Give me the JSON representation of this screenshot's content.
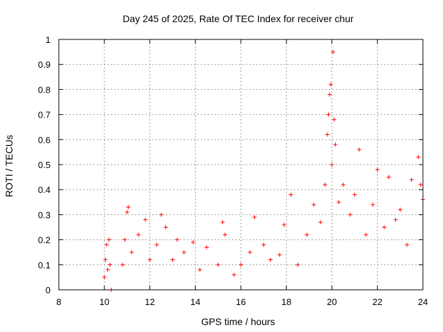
{
  "chart_data": {
    "type": "scatter",
    "title": "Day 245 of 2025, Rate Of TEC Index for receiver chur",
    "xlabel": "GPS time / hours",
    "ylabel": "ROTI / TECUs",
    "xlim": [
      8,
      24
    ],
    "ylim": [
      0,
      1
    ],
    "grid": true,
    "marker": "+",
    "marker_color": "#ff0000",
    "x_ticks": [
      "8",
      "10",
      "12",
      "14",
      "16",
      "18",
      "20",
      "22",
      "24"
    ],
    "y_ticks": [
      "0",
      "0.1",
      "0.2",
      "0.3",
      "0.4",
      "0.5",
      "0.6",
      "0.7",
      "0.8",
      "0.9",
      "1"
    ],
    "series": [
      {
        "name": "ROTI",
        "points": [
          [
            10.0,
            0.05
          ],
          [
            10.05,
            0.12
          ],
          [
            10.1,
            0.18
          ],
          [
            10.15,
            0.08
          ],
          [
            10.2,
            0.2
          ],
          [
            10.25,
            0.1
          ],
          [
            10.3,
            0.0
          ],
          [
            10.8,
            0.1
          ],
          [
            10.9,
            0.2
          ],
          [
            11.0,
            0.31
          ],
          [
            11.05,
            0.33
          ],
          [
            11.2,
            0.15
          ],
          [
            11.5,
            0.22
          ],
          [
            11.8,
            0.28
          ],
          [
            12.0,
            0.12
          ],
          [
            12.3,
            0.18
          ],
          [
            12.5,
            0.3
          ],
          [
            12.7,
            0.25
          ],
          [
            13.0,
            0.12
          ],
          [
            13.2,
            0.2
          ],
          [
            13.5,
            0.15
          ],
          [
            13.9,
            0.19
          ],
          [
            14.2,
            0.08
          ],
          [
            14.5,
            0.17
          ],
          [
            15.0,
            0.1
          ],
          [
            15.2,
            0.27
          ],
          [
            15.3,
            0.22
          ],
          [
            15.7,
            0.06
          ],
          [
            16.0,
            0.1
          ],
          [
            16.4,
            0.15
          ],
          [
            16.6,
            0.29
          ],
          [
            17.0,
            0.18
          ],
          [
            17.3,
            0.12
          ],
          [
            17.7,
            0.14
          ],
          [
            17.9,
            0.26
          ],
          [
            18.2,
            0.38
          ],
          [
            18.5,
            0.1
          ],
          [
            18.9,
            0.22
          ],
          [
            19.2,
            0.34
          ],
          [
            19.5,
            0.27
          ],
          [
            19.7,
            0.42
          ],
          [
            19.8,
            0.62
          ],
          [
            19.85,
            0.7
          ],
          [
            19.9,
            0.78
          ],
          [
            19.95,
            0.82
          ],
          [
            20.0,
            0.5
          ],
          [
            20.05,
            0.95
          ],
          [
            20.1,
            0.68
          ],
          [
            20.15,
            0.58
          ],
          [
            20.3,
            0.35
          ],
          [
            20.5,
            0.42
          ],
          [
            20.8,
            0.3
          ],
          [
            21.0,
            0.38
          ],
          [
            21.2,
            0.56
          ],
          [
            21.5,
            0.22
          ],
          [
            21.8,
            0.34
          ],
          [
            22.0,
            0.48
          ],
          [
            22.3,
            0.25
          ],
          [
            22.5,
            0.45
          ],
          [
            22.8,
            0.28
          ],
          [
            23.0,
            0.32
          ],
          [
            23.3,
            0.18
          ],
          [
            23.5,
            0.44
          ],
          [
            23.8,
            0.53
          ],
          [
            23.9,
            0.42
          ],
          [
            24.0,
            0.36
          ]
        ]
      }
    ]
  }
}
